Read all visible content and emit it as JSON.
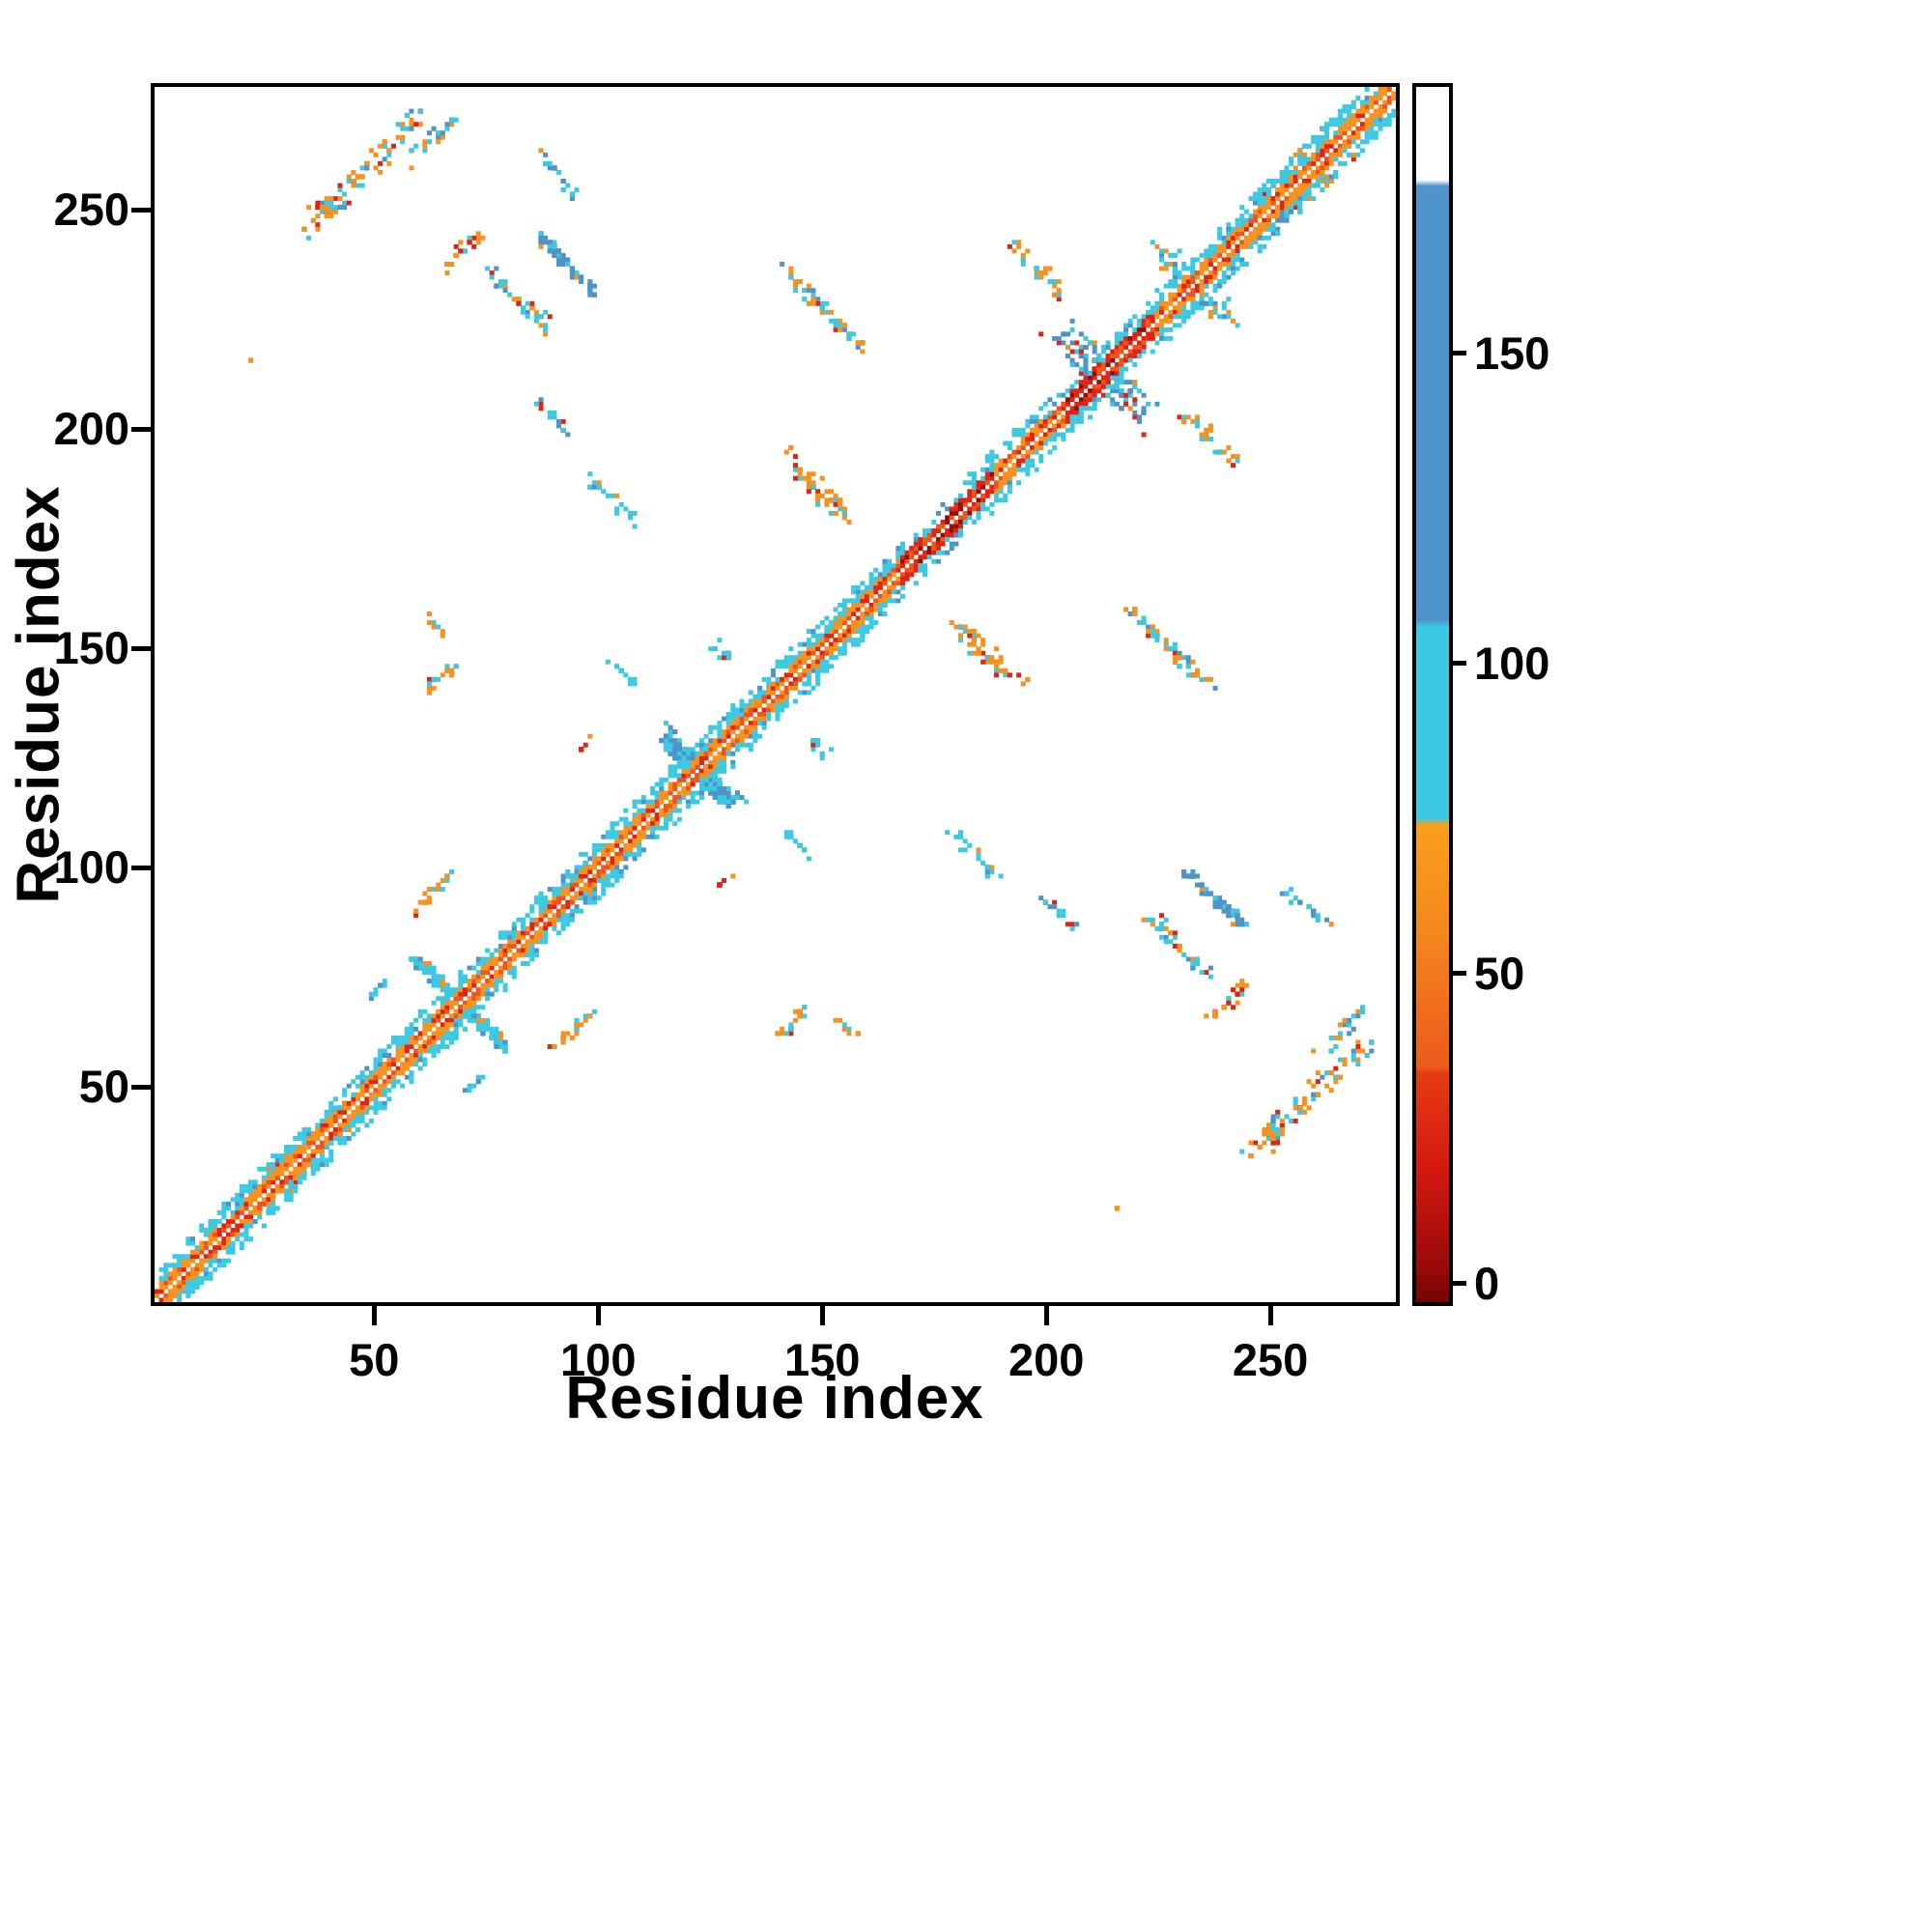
{
  "chart_data": {
    "type": "heatmap",
    "variant": "protein-contact-map",
    "title": "",
    "xlabel": "Residue index",
    "ylabel": "Residue index",
    "x_range": [
      1,
      278
    ],
    "y_range": [
      1,
      278
    ],
    "x_ticks": [
      50,
      100,
      150,
      200,
      250
    ],
    "y_ticks": [
      50,
      100,
      150,
      200,
      250
    ],
    "grid": false,
    "background": "#ffffff",
    "symmetric": true,
    "seed": 1337,
    "palette": {
      "darkred": "#8e0e0e",
      "red": "#e02413",
      "orangered": "#f0541c",
      "orange": "#f8911d",
      "cyan": "#3cc9e3",
      "steel": "#4e93c9",
      "white": "#ffffff"
    },
    "colorbar": {
      "min": -3,
      "max": 193,
      "ticks": [
        0,
        50,
        100,
        150
      ],
      "stops": [
        [
          -3,
          "#730505"
        ],
        [
          3,
          "#9c0a0a"
        ],
        [
          18,
          "#d31810"
        ],
        [
          34,
          "#e73c15"
        ],
        [
          35,
          "#ec5a1c"
        ],
        [
          58,
          "#f5891d"
        ],
        [
          74,
          "#f99f1b"
        ],
        [
          75,
          "#3cc9e3"
        ],
        [
          106,
          "#3cc9e3"
        ],
        [
          107,
          "#4e93c9"
        ],
        [
          177,
          "#4e93c9"
        ],
        [
          178,
          "#ffffff"
        ],
        [
          193,
          "#ffffff"
        ]
      ]
    },
    "diagonal": {
      "segments": [
        {
          "from": 1,
          "to": 167,
          "core": "orange",
          "flank": 0.55
        },
        {
          "from": 168,
          "to": 188,
          "core": "red",
          "flank": 0.3
        },
        {
          "from": 189,
          "to": 204,
          "core": "orange",
          "flank": 0.5
        },
        {
          "from": 205,
          "to": 224,
          "core": "red",
          "flank": 0.45
        },
        {
          "from": 225,
          "to": 278,
          "core": "orange",
          "flank": 0.55
        }
      ]
    },
    "clusters": [
      {
        "name": "nw-main",
        "cx": 47,
        "cy": 259,
        "len": 28,
        "slope": 1,
        "spread": 5,
        "n": 95,
        "mix": {
          "orange": 0.45,
          "red": 0.15,
          "cyan": 0.3,
          "steel": 0.1
        }
      },
      {
        "name": "nw-arm",
        "cx": 63,
        "cy": 267,
        "len": 10,
        "slope": 1,
        "spread": 3,
        "n": 22,
        "mix": {
          "cyan": 0.5,
          "orange": 0.4,
          "steel": 0.1
        }
      },
      {
        "name": "nw-cyan-upper",
        "cx": 90,
        "cy": 259,
        "len": 10,
        "slope": -1,
        "spread": 3,
        "n": 20,
        "mix": {
          "cyan": 0.55,
          "steel": 0.3,
          "orange": 0.15
        }
      },
      {
        "name": "red-70-242",
        "cx": 70,
        "cy": 242,
        "len": 8,
        "slope": 1,
        "spread": 2.5,
        "n": 26,
        "mix": {
          "red": 0.35,
          "orange": 0.55,
          "cyan": 0.1
        }
      },
      {
        "name": "cyan-82-230",
        "cx": 82,
        "cy": 230,
        "len": 14,
        "slope": -1,
        "spread": 3,
        "n": 40,
        "mix": {
          "cyan": 0.55,
          "orange": 0.3,
          "steel": 0.1,
          "red": 0.05
        }
      },
      {
        "name": "steel-93-238",
        "cx": 93,
        "cy": 238,
        "len": 13,
        "slope": -1,
        "spread": 2,
        "n": 60,
        "mix": {
          "steel": 0.55,
          "cyan": 0.35,
          "orange": 0.1
        }
      },
      {
        "name": "dots-90-203",
        "cx": 90,
        "cy": 203,
        "len": 8,
        "slope": -1,
        "spread": 2,
        "n": 14,
        "mix": {
          "steel": 0.45,
          "cyan": 0.45,
          "red": 0.1
        }
      },
      {
        "name": "dots-103-184",
        "cx": 103,
        "cy": 184,
        "len": 11,
        "slope": -1,
        "spread": 2.5,
        "n": 22,
        "mix": {
          "cyan": 0.8,
          "steel": 0.1,
          "orange": 0.1
        }
      },
      {
        "name": "dots-105-145",
        "cx": 105,
        "cy": 145,
        "len": 6,
        "slope": -1,
        "spread": 1.5,
        "n": 12,
        "mix": {
          "cyan": 0.85,
          "steel": 0.15
        }
      },
      {
        "name": "orange-65-144",
        "cx": 65,
        "cy": 144,
        "len": 7,
        "slope": 1,
        "spread": 2,
        "n": 18,
        "mix": {
          "orange": 0.55,
          "red": 0.3,
          "cyan": 0.15
        }
      },
      {
        "name": "dots-64-155",
        "cx": 64,
        "cy": 155,
        "len": 5,
        "slope": -1,
        "spread": 1.5,
        "n": 8,
        "mix": {
          "orange": 0.7,
          "cyan": 0.3
        }
      },
      {
        "name": "orange-63-95",
        "cx": 63,
        "cy": 95,
        "len": 9,
        "slope": 1,
        "spread": 2,
        "n": 22,
        "mix": {
          "orange": 0.5,
          "red": 0.15,
          "cyan": 0.35
        }
      },
      {
        "name": "cyan-51-73",
        "cx": 51,
        "cy": 73,
        "len": 4,
        "slope": 1,
        "spread": 1.5,
        "n": 8,
        "mix": {
          "cyan": 0.85,
          "steel": 0.15
        }
      },
      {
        "name": "tiny-97-128",
        "cx": 97,
        "cy": 128,
        "len": 3,
        "slope": 1,
        "spread": 1,
        "n": 6,
        "mix": {
          "red": 0.5,
          "orange": 0.5
        }
      },
      {
        "name": "mid-128-149",
        "cx": 128,
        "cy": 149,
        "len": 7,
        "slope": -1,
        "spread": 2,
        "n": 13,
        "mix": {
          "cyan": 0.5,
          "orange": 0.4,
          "red": 0.1
        }
      },
      {
        "name": "streak-150-228",
        "cx": 150,
        "cy": 228,
        "len": 18,
        "slope": -1,
        "spread": 3,
        "n": 60,
        "mix": {
          "cyan": 0.4,
          "orange": 0.35,
          "steel": 0.2,
          "red": 0.05
        }
      },
      {
        "name": "orange-149-187",
        "cx": 149,
        "cy": 187,
        "len": 15,
        "slope": -1,
        "spread": 4,
        "n": 50,
        "mix": {
          "orange": 0.55,
          "red": 0.15,
          "cyan": 0.3
        }
      },
      {
        "name": "cluster-198-237",
        "cx": 198,
        "cy": 237,
        "len": 12,
        "slope": -1,
        "spread": 3,
        "n": 32,
        "mix": {
          "orange": 0.45,
          "cyan": 0.4,
          "red": 0.15
        }
      },
      {
        "name": "tiny-22-216",
        "cx": 22,
        "cy": 216,
        "len": 1,
        "slope": 1,
        "spread": 0.5,
        "n": 2,
        "mix": {
          "orange": 1.0
        }
      },
      {
        "name": "cross-69",
        "cx": 69,
        "cy": 69,
        "len": 21,
        "slope": -1,
        "spread": 2.5,
        "n": 80,
        "mix": {
          "cyan": 0.75,
          "steel": 0.1,
          "orange": 0.15
        }
      },
      {
        "name": "blob-122",
        "cx": 122,
        "cy": 123,
        "len": 15,
        "slope": -1,
        "spread": 3.5,
        "n": 130,
        "mix": {
          "steel": 0.6,
          "cyan": 0.4
        }
      },
      {
        "name": "region-214",
        "cx": 214,
        "cy": 212,
        "len": 18,
        "slope": -1,
        "spread": 6,
        "n": 55,
        "mix": {
          "steel": 0.3,
          "cyan": 0.25,
          "red": 0.25,
          "orange": 0.2
        }
      },
      {
        "name": "scatter-232",
        "cx": 231,
        "cy": 235,
        "len": 14,
        "slope": -1,
        "spread": 5,
        "n": 30,
        "mix": {
          "cyan": 0.55,
          "steel": 0.25,
          "orange": 0.2
        }
      },
      {
        "name": "scatter-257",
        "cx": 256,
        "cy": 260,
        "len": 15,
        "slope": 1,
        "spread": 5,
        "n": 40,
        "mix": {
          "orange": 0.45,
          "cyan": 0.3,
          "red": 0.15,
          "steel": 0.1
        }
      },
      {
        "name": "bulge-26",
        "cx": 26,
        "cy": 29,
        "len": 10,
        "slope": 1,
        "spread": 3,
        "n": 25,
        "mix": {
          "orange": 0.6,
          "red": 0.2,
          "cyan": 0.2
        }
      },
      {
        "name": "bulge-40",
        "cx": 40,
        "cy": 43,
        "len": 8,
        "slope": 1,
        "spread": 2.5,
        "n": 18,
        "mix": {
          "orange": 0.5,
          "cyan": 0.4,
          "red": 0.1
        }
      },
      {
        "name": "bulge-94",
        "cx": 94,
        "cy": 97,
        "len": 12,
        "slope": 1,
        "spread": 3,
        "n": 25,
        "mix": {
          "cyan": 0.6,
          "steel": 0.2,
          "orange": 0.2
        }
      },
      {
        "name": "bulge-152",
        "cx": 152,
        "cy": 155,
        "len": 16,
        "slope": 1,
        "spread": 3.5,
        "n": 30,
        "mix": {
          "cyan": 0.55,
          "steel": 0.25,
          "orange": 0.2
        }
      }
    ]
  }
}
